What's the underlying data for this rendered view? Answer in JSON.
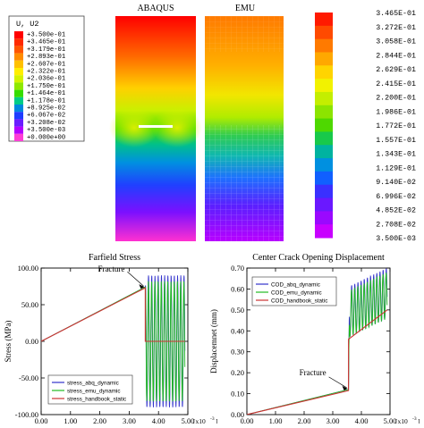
{
  "top": {
    "labels": [
      "ABAQUS",
      "EMU"
    ],
    "legend": {
      "title": "U, U2",
      "values": [
        "+3.500e-01",
        "+3.465e-01",
        "+3.179e-01",
        "+2.893e-01",
        "+2.607e-01",
        "+2.322e-01",
        "+2.036e-01",
        "+1.750e-01",
        "+1.464e-01",
        "+1.178e-01",
        "+8.925e-02",
        "+6.067e-02",
        "+3.208e-02",
        "+3.500e-03",
        "+0.000e+00"
      ],
      "colors": [
        "#ff0000",
        "#ff2a00",
        "#ff5500",
        "#ff8c00",
        "#ffc000",
        "#ffee00",
        "#d4f200",
        "#8ee800",
        "#36dd00",
        "#00cc88",
        "#0088dd",
        "#1f3dff",
        "#6a1dff",
        "#b300ff",
        "#ff3dd6"
      ]
    },
    "colorbar_values": [
      "3.465E-01",
      "3.272E-01",
      "3.058E-01",
      "2.844E-01",
      "2.629E-01",
      "2.415E-01",
      "2.200E-01",
      "1.986E-01",
      "1.772E-01",
      "1.557E-01",
      "1.343E-01",
      "1.129E-01",
      "9.140E-02",
      "6.996E-02",
      "4.852E-02",
      "2.708E-02",
      "3.500E-03"
    ],
    "colorbar_colors": [
      "#ff1a00",
      "#ff4a00",
      "#ff7a00",
      "#ffa800",
      "#ffd400",
      "#f2f200",
      "#c4ee00",
      "#8ce400",
      "#4ed800",
      "#18c94a",
      "#00b3a0",
      "#0090e0",
      "#1060ff",
      "#3a30ff",
      "#6a18ff",
      "#9a08ff",
      "#c800ff"
    ]
  },
  "chart_data": [
    {
      "type": "line",
      "title": "Farfield Stress",
      "ylabel": "Stress (MPa)",
      "xunit": "[x10",
      "xunit_exp": "-3",
      "xunit_close": "]",
      "xlim": [
        0,
        5
      ],
      "ylim": [
        -100,
        100
      ],
      "x_ticks": [
        "0.00",
        "1.00",
        "2.00",
        "3.00",
        "4.00",
        "5.00"
      ],
      "y_ticks": [
        "100.00",
        "50.00",
        "0.00",
        "-50.00",
        "-100.00"
      ],
      "annotation": "Fracture",
      "annotation_point": [
        3.55,
        73
      ],
      "series": [
        {
          "name": "stress_abq_dynamic",
          "color": "#3333cc",
          "ramp": [
            [
              0,
              0
            ],
            [
              3.55,
              74
            ]
          ],
          "osc": {
            "start": 3.55,
            "end": 4.9,
            "center": 0,
            "amp": 90,
            "period": 0.11,
            "phase": 0
          }
        },
        {
          "name": "stress_emu_dynamic",
          "color": "#22bb22",
          "ramp": [
            [
              0,
              0
            ],
            [
              3.55,
              74
            ]
          ],
          "osc": {
            "start": 3.55,
            "end": 4.9,
            "center": 0,
            "amp": 82,
            "period": 0.11,
            "phase": 0.3
          }
        },
        {
          "name": "stress_handbook_static",
          "color": "#cc3333",
          "points": [
            [
              0,
              0
            ],
            [
              3.55,
              73
            ],
            [
              3.55,
              0
            ],
            [
              4.9,
              0
            ]
          ]
        }
      ]
    },
    {
      "type": "line",
      "title": "Center Crack Opening Displacement",
      "ylabel": "Displacemnet (mm)",
      "xunit": "[x10",
      "xunit_exp": "-3",
      "xunit_close": "]",
      "xlim": [
        0,
        5
      ],
      "ylim": [
        0,
        0.7
      ],
      "x_ticks": [
        "0.00",
        "1.00",
        "2.00",
        "3.00",
        "4.00",
        "5.00"
      ],
      "y_ticks": [
        "0.70",
        "0.60",
        "0.50",
        "0.40",
        "0.30",
        "0.20",
        "0.10",
        "0.00"
      ],
      "annotation": "Fracture",
      "annotation_point": [
        3.55,
        0.12
      ],
      "series": [
        {
          "name": "COD_abq_dynamic",
          "color": "#3333cc",
          "ramp": [
            [
              0,
              0
            ],
            [
              3.55,
              0.12
            ]
          ],
          "osc": {
            "start": 3.55,
            "end": 4.9,
            "center": 0.49,
            "center_end": 0.58,
            "amp": 0.12,
            "period": 0.11,
            "phase": 0
          }
        },
        {
          "name": "COD_emu_dynamic",
          "color": "#22bb22",
          "ramp": [
            [
              0,
              0
            ],
            [
              3.55,
              0.12
            ]
          ],
          "osc": {
            "start": 3.55,
            "end": 4.9,
            "center": 0.48,
            "center_end": 0.57,
            "amp": 0.11,
            "period": 0.11,
            "phase": 0.3
          }
        },
        {
          "name": "COD_handbook_static",
          "color": "#cc3333",
          "points": [
            [
              0,
              0
            ],
            [
              3.55,
              0.115
            ],
            [
              3.55,
              0.36
            ],
            [
              4.9,
              0.5
            ]
          ]
        }
      ]
    }
  ]
}
